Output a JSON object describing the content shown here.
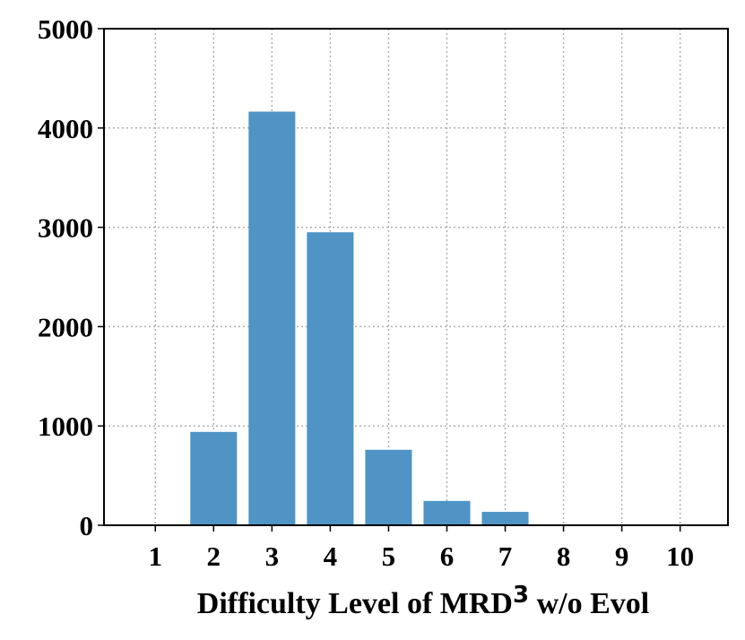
{
  "chart_data": {
    "type": "bar",
    "categories": [
      "1",
      "2",
      "3",
      "4",
      "5",
      "6",
      "7",
      "8",
      "9",
      "10"
    ],
    "values": [
      0,
      940,
      4165,
      2950,
      760,
      245,
      135,
      5,
      0,
      0
    ],
    "xlabel": {
      "main": "Difficulty Level of MRD",
      "superscript": "3",
      "suffix": " w/o Evol"
    },
    "ylabel": "",
    "title": "",
    "ylim": [
      0,
      5000
    ],
    "yticks": [
      0,
      1000,
      2000,
      3000,
      4000,
      5000
    ],
    "grid": true,
    "bar_color": "#4f94c4",
    "grid_color": "#b0b0b0"
  }
}
